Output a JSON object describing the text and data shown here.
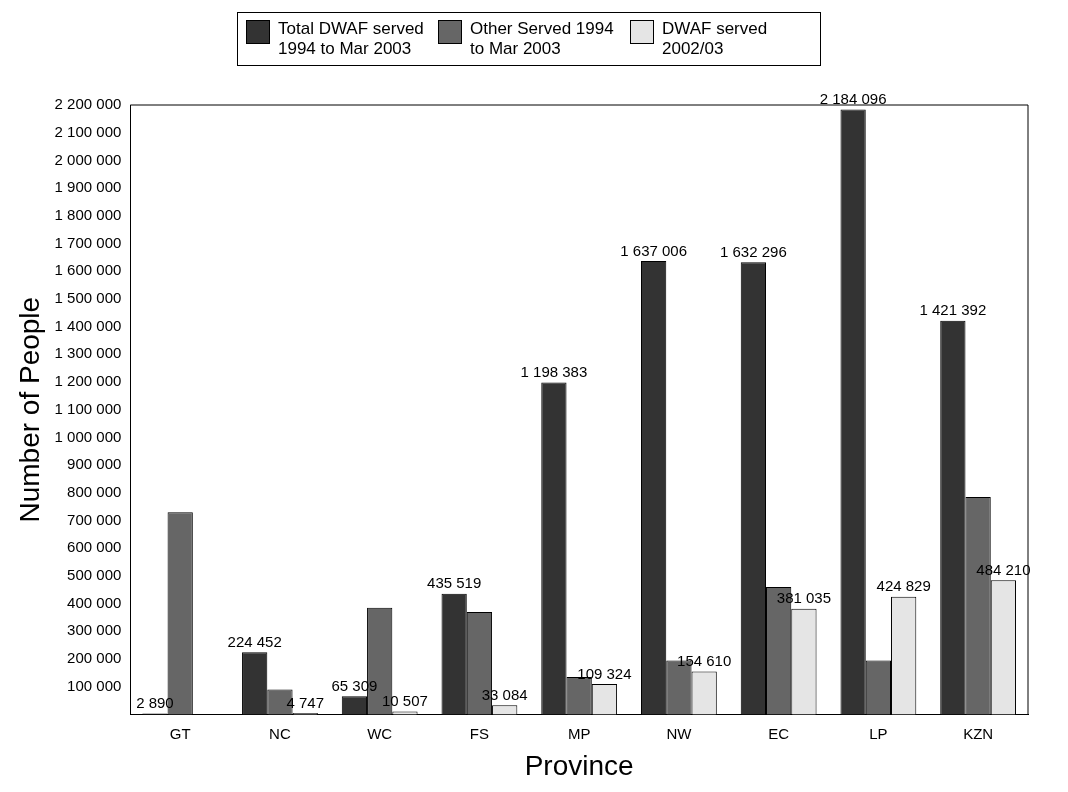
{
  "chart_data": {
    "type": "bar",
    "xlabel": "Province",
    "ylabel": "Number of People",
    "categories": [
      "GT",
      "NC",
      "WC",
      "FS",
      "MP",
      "NW",
      "EC",
      "LP",
      "KZN"
    ],
    "series": [
      {
        "name": "Total DWAF served 1994 to Mar 2003",
        "color": "#333333",
        "values": [
          2890,
          224452,
          65309,
          435519,
          1198383,
          1637006,
          1632296,
          2184096,
          1421392
        ],
        "value_labels": [
          "2 890",
          "224 452",
          "65 309",
          "435 519",
          "1 198 383",
          "1 637 006",
          "1 632 296",
          "2 184 096",
          "1 421 392"
        ]
      },
      {
        "name": "Other Served 1994 to Mar 2003",
        "color": "#666666",
        "values": [
          730000,
          90000,
          385000,
          370000,
          135000,
          195000,
          460000,
          195000,
          785000
        ]
      },
      {
        "name": "DWAF served 2002/03",
        "color": "#e5e5e5",
        "values": [
          null,
          4747,
          10507,
          33084,
          109324,
          154610,
          381035,
          424829,
          484210
        ],
        "value_labels": [
          null,
          "4 747",
          "10 507",
          "33 084",
          "109 324",
          "154 610",
          "381 035",
          "424 829",
          "484 210"
        ]
      }
    ],
    "ylim": [
      0,
      2200000
    ],
    "yticks": [
      {
        "value": 0,
        "label": null
      },
      {
        "value": 100000,
        "label": "100 000"
      },
      {
        "value": 200000,
        "label": "200 000"
      },
      {
        "value": 300000,
        "label": "300 000"
      },
      {
        "value": 400000,
        "label": "400 000"
      },
      {
        "value": 500000,
        "label": "500 000"
      },
      {
        "value": 600000,
        "label": "600 000"
      },
      {
        "value": 700000,
        "label": "700 000"
      },
      {
        "value": 800000,
        "label": "800 000"
      },
      {
        "value": 900000,
        "label": "900 000"
      },
      {
        "value": 1000000,
        "label": "1 000 000"
      },
      {
        "value": 1100000,
        "label": "1 100 000"
      },
      {
        "value": 1200000,
        "label": "1 200 000"
      },
      {
        "value": 1300000,
        "label": "1 300 000"
      },
      {
        "value": 1400000,
        "label": "1 400 000"
      },
      {
        "value": 1500000,
        "label": "1 500 000"
      },
      {
        "value": 1600000,
        "label": "1 600 000"
      },
      {
        "value": 1700000,
        "label": "1 700 000"
      },
      {
        "value": 1800000,
        "label": "1 800 000"
      },
      {
        "value": 1900000,
        "label": "1 900 000"
      },
      {
        "value": 2000000,
        "label": "2 000 000"
      },
      {
        "value": 2100000,
        "label": "2 100 000"
      },
      {
        "value": 2200000,
        "label": "2 200 000"
      }
    ],
    "grid": false,
    "legend": "top"
  }
}
